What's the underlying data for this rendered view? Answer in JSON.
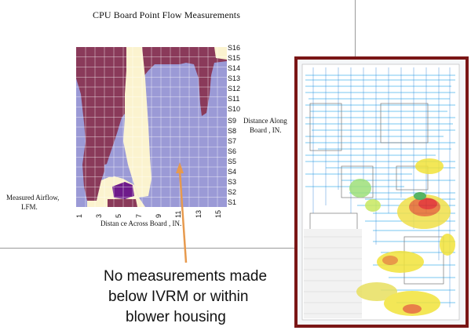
{
  "chart": {
    "title": "CPU Board  Point  Flow Measurements",
    "y_ticks": [
      "S16",
      "S15",
      "S14",
      "S13",
      "S12",
      "S11",
      "S10",
      "S9",
      "S8",
      "S7",
      "S6",
      "S5",
      "S4",
      "S3",
      "S2",
      "S1"
    ],
    "x_ticks": [
      "1",
      "3",
      "5",
      "7",
      "9",
      "11",
      "13",
      "15"
    ],
    "x_axis_label": "Distan ce Across Board , IN.",
    "y_axis_label_line1": "Distance Along",
    "y_axis_label_line2": "Board , IN.",
    "legend_label_line1": "Measured  Airflow,",
    "legend_label_line2": "LFM.",
    "colors": {
      "lavender": "#9b9ad6",
      "maroon": "#8a3a5a",
      "cream": "#fbf3cf",
      "purple": "#6e1a8a",
      "grid": "#ffffff"
    }
  },
  "annotation": {
    "line1": "No measurements made",
    "line2": "below IVRM  or within",
    "line3": "blower housing",
    "arrow_color": "#e79a4e"
  },
  "cfd_image": {
    "frame_color": "#7a1616"
  }
}
